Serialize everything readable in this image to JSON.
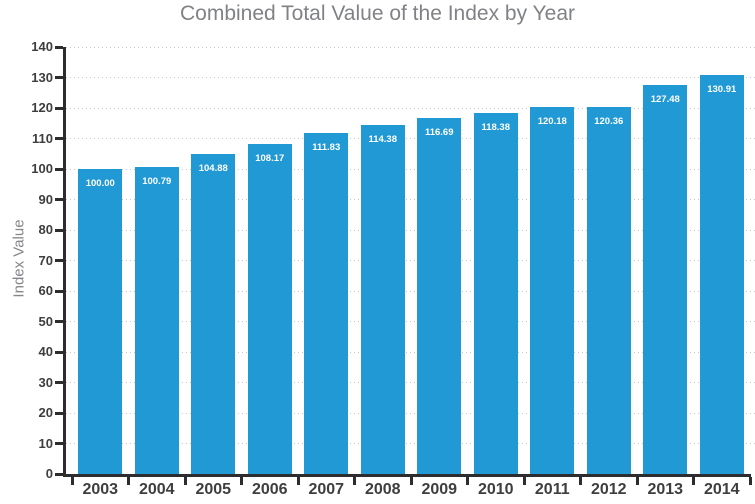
{
  "title": "Combined Total Value of the Index by Year",
  "chart_data": {
    "type": "bar",
    "title": "Combined Total Value of the Index by Year",
    "xlabel": "",
    "ylabel": "Index Value",
    "categories": [
      "2003",
      "2004",
      "2005",
      "2006",
      "2007",
      "2008",
      "2009",
      "2010",
      "2011",
      "2012",
      "2013",
      "2014"
    ],
    "values": [
      100.0,
      100.79,
      104.88,
      108.17,
      111.83,
      114.38,
      116.69,
      118.38,
      120.18,
      120.36,
      127.48,
      130.91
    ],
    "value_labels": [
      "100.00",
      "100.79",
      "104.88",
      "108.17",
      "111.83",
      "114.38",
      "116.69",
      "118.38",
      "120.18",
      "120.36",
      "127.48",
      "130.91"
    ],
    "ylim": [
      0,
      140
    ],
    "ytick_step": 10,
    "grid": "horizontal-dotted",
    "legend": "none",
    "colors": {
      "bar_fill": "#2199d4",
      "bar_value_text": "#ffffff",
      "title_text": "#808285",
      "axis_line": "#2d2c2e",
      "tick_label_text": "#3e3d3f",
      "y_axis_title_text": "#85868a",
      "gridline": "#c6c6c9",
      "background": "#ffffff"
    }
  }
}
